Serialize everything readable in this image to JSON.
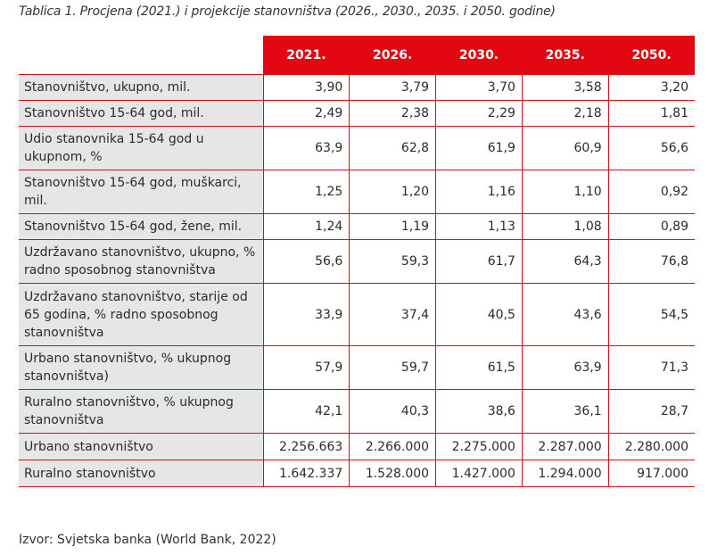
{
  "title": "Tablica 1. Procjena (2021.) i projekcije stanovništva (2026., 2030., 2035. i 2050. godine)",
  "table": {
    "columns": [
      "2021.",
      "2026.",
      "2030.",
      "2035.",
      "2050."
    ],
    "rows": [
      {
        "label": "Stanovništvo, ukupno, mil.",
        "values": [
          "3,90",
          "3,79",
          "3,70",
          "3,58",
          "3,20"
        ]
      },
      {
        "label": "Stanovništvo 15-64 god, mil.",
        "values": [
          "2,49",
          "2,38",
          "2,29",
          "2,18",
          "1,81"
        ]
      },
      {
        "label": "Udio stanovnika 15-64 god u ukupnom, %",
        "values": [
          "63,9",
          "62,8",
          "61,9",
          "60,9",
          "56,6"
        ]
      },
      {
        "label": "Stanovništvo 15-64 god, muškarci, mil.",
        "values": [
          "1,25",
          "1,20",
          "1,16",
          "1,10",
          "0,92"
        ]
      },
      {
        "label": "Stanovništvo 15-64 god, žene, mil.",
        "values": [
          "1,24",
          "1,19",
          "1,13",
          "1,08",
          "0,89"
        ]
      },
      {
        "label": "Uzdržavano stanovništvo, ukupno, % radno sposobnog stanovništva",
        "values": [
          "56,6",
          "59,3",
          "61,7",
          "64,3",
          "76,8"
        ]
      },
      {
        "label": "Uzdržavano stanovništvo, starije od 65 godina, % radno sposobnog stanovništva",
        "values": [
          "33,9",
          "37,4",
          "40,5",
          "43,6",
          "54,5"
        ]
      },
      {
        "label": "Urbano stanovništvo, % ukupnog stanovništva)",
        "values": [
          "57,9",
          "59,7",
          "61,5",
          "63,9",
          "71,3"
        ]
      },
      {
        "label": "Ruralno stanovništvo, % ukupnog stanovništva",
        "values": [
          "42,1",
          "40,3",
          "38,6",
          "36,1",
          "28,7"
        ]
      },
      {
        "label": "Urbano stanovništvo",
        "values": [
          "2.256.663",
          "2.266.000",
          "2.275.000",
          "2.287.000",
          "2.280.000"
        ]
      },
      {
        "label": "Ruralno stanovništvo",
        "values": [
          "1.642.337",
          "1.528.000",
          "1.427.000",
          "1.294.000",
          "917.000"
        ]
      }
    ]
  },
  "source": "Izvor: Svjetska banka (World Bank, 2022)",
  "colors": {
    "accent": "#e30613",
    "label_bg": "#e6e6e6"
  }
}
